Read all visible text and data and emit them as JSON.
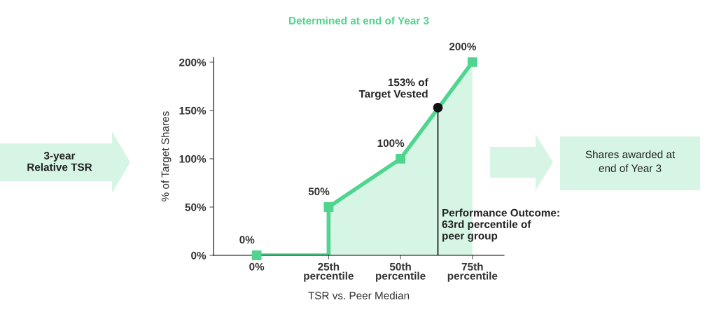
{
  "chart_data": {
    "type": "area",
    "title": "Determined at end of Year 3",
    "xlabel": "TSR vs. Peer Median",
    "ylabel": "% of Target Shares",
    "xlim": [
      -15,
      86
    ],
    "xticks": [
      {
        "value": 0,
        "label": "0%"
      },
      {
        "value": 25,
        "label": "25th\npercentile"
      },
      {
        "value": 50,
        "label": "50th\npercentile"
      },
      {
        "value": 75,
        "label": "75th\npercentile"
      }
    ],
    "ylim": [
      0,
      205
    ],
    "yticks": [
      {
        "value": 0,
        "label": "0%"
      },
      {
        "value": 50,
        "label": "50%"
      },
      {
        "value": 100,
        "label": "100%"
      },
      {
        "value": 150,
        "label": "150%"
      },
      {
        "value": 200,
        "label": "200%"
      }
    ],
    "series": [
      {
        "color": "#4fd58e",
        "x": [
          0,
          25,
          25,
          50,
          75
        ],
        "values": [
          0,
          0,
          50,
          100,
          200
        ]
      },
      {
        "type": "scatter",
        "color": "#4fd58e",
        "marker": "square",
        "x": [
          0,
          25,
          50,
          75
        ],
        "values": [
          0,
          50,
          100,
          200
        ],
        "value_labels": [
          "0%",
          "50%",
          "100%",
          "200%"
        ]
      },
      {
        "type": "scatter",
        "color": "#111111",
        "marker": "circle",
        "x": [
          63
        ],
        "values": [
          153
        ]
      }
    ],
    "ref_lines": [
      {
        "axis": "x",
        "value": 63,
        "color": "#111111"
      }
    ],
    "annotations": [
      {
        "text": "153% of\nTarget Vested",
        "x": 63,
        "y": 153
      },
      {
        "text": "Performance Outcome:\n63rd percentile of\npeer group",
        "x": 63,
        "y": 0
      },
      "3-year\nRelative TSR",
      "Shares awarded at\nend of Year 3"
    ],
    "grid": false
  }
}
